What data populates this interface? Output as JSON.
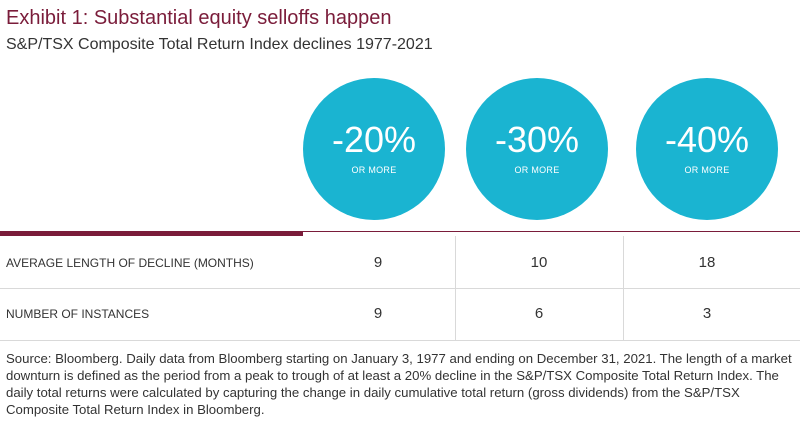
{
  "header": {
    "title": "Exhibit 1: Substantial equity selloffs happen",
    "subtitle": "S&P/TSX Composite Total Return Index declines 1977-2021"
  },
  "colors": {
    "title": "#7a1c3a",
    "circle": "#1ab4d1",
    "rule": "#7a1c3a",
    "text": "#333333"
  },
  "chart_data": {
    "type": "table",
    "title": "Exhibit 1: Substantial equity selloffs happen",
    "subtitle": "S&P/TSX Composite Total Return Index declines 1977-2021",
    "columns": [
      {
        "value": "-20%",
        "caption": "OR MORE"
      },
      {
        "value": "-30%",
        "caption": "OR MORE"
      },
      {
        "value": "-40%",
        "caption": "OR MORE"
      }
    ],
    "rows": [
      {
        "label": "AVERAGE LENGTH OF DECLINE (MONTHS)",
        "values": [
          9,
          10,
          18
        ]
      },
      {
        "label": "NUMBER OF INSTANCES",
        "values": [
          9,
          6,
          3
        ]
      }
    ]
  },
  "source_note": "Source: Bloomberg. Daily data from Bloomberg starting on January 3, 1977 and ending on December 31, 2021. The length of a market downturn is defined as the period from a peak to trough of at least a 20% decline in the S&P/TSX Composite Total Return Index. The daily total returns were calculated by capturing the change in daily cumulative total return (gross dividends) from the S&P/TSX Composite Total Return Index in Bloomberg."
}
